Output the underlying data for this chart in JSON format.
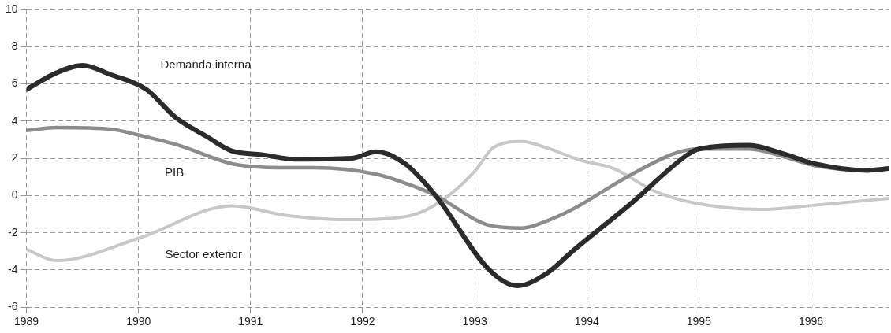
{
  "chart_data": {
    "type": "line",
    "xlim": [
      1989,
      1996.7
    ],
    "xticks": [
      1989,
      1990,
      1991,
      1992,
      1993,
      1994,
      1995,
      1996
    ],
    "ylim": [
      -6,
      10
    ],
    "yticks": [
      -6,
      -4,
      -2,
      0,
      2,
      4,
      6,
      8,
      10
    ],
    "grid": true,
    "legend": false,
    "series": [
      {
        "name": "Demanda interna",
        "color": "#2b2b2b",
        "x": [
          1989,
          1989.27,
          1989.5,
          1989.75,
          1990.07,
          1990.33,
          1990.6,
          1990.83,
          1991.1,
          1991.4,
          1991.9,
          1992.12,
          1992.38,
          1992.65,
          1993.13,
          1993.38,
          1993.65,
          1993.88,
          1994.4,
          1994.9,
          1995,
          1995.45,
          1995.75,
          1996.04,
          1996.5,
          1996.7
        ],
        "values": [
          5.7,
          6.6,
          7.0,
          6.5,
          5.7,
          4.2,
          3.2,
          2.4,
          2.2,
          1.95,
          2.0,
          2.35,
          1.7,
          0,
          -4.0,
          -4.85,
          -4.15,
          -2.95,
          -0.4,
          2.2,
          2.5,
          2.7,
          2.25,
          1.7,
          1.35,
          1.45
        ]
      },
      {
        "name": "PIB",
        "color": "#8c8c8c",
        "x": [
          1989,
          1989.27,
          1989.77,
          1990,
          1990.36,
          1990.84,
          1991.3,
          1991.57,
          1992.12,
          1992.41,
          1992.65,
          1993.13,
          1993.42,
          1993.65,
          1993.87,
          1994.36,
          1994.8,
          1995,
          1995.45,
          1995.75,
          1996.04,
          1996.5,
          1996.7
        ],
        "values": [
          3.5,
          3.65,
          3.55,
          3.25,
          2.7,
          1.7,
          1.5,
          1.5,
          1.15,
          0.6,
          0,
          -1.6,
          -1.75,
          -1.35,
          -0.75,
          1.0,
          2.3,
          2.5,
          2.5,
          2.1,
          1.6,
          1.35,
          1.5
        ]
      },
      {
        "name": "Sector exterior",
        "color": "#c8c8c8",
        "x": [
          1989,
          1989.27,
          1990,
          1990.84,
          1991.3,
          1991.86,
          1992.41,
          1992.7,
          1993,
          1993.17,
          1993.42,
          1993.65,
          1993.94,
          1994.24,
          1994.6,
          1994.96,
          1995.55,
          1995.98,
          1996.7
        ],
        "values": [
          -2.9,
          -3.5,
          -2.3,
          -0.55,
          -1.05,
          -1.3,
          -1.1,
          -0.3,
          1.3,
          2.6,
          2.9,
          2.55,
          1.9,
          1.45,
          0.25,
          -0.4,
          -0.75,
          -0.55,
          -0.15
        ]
      }
    ]
  }
}
